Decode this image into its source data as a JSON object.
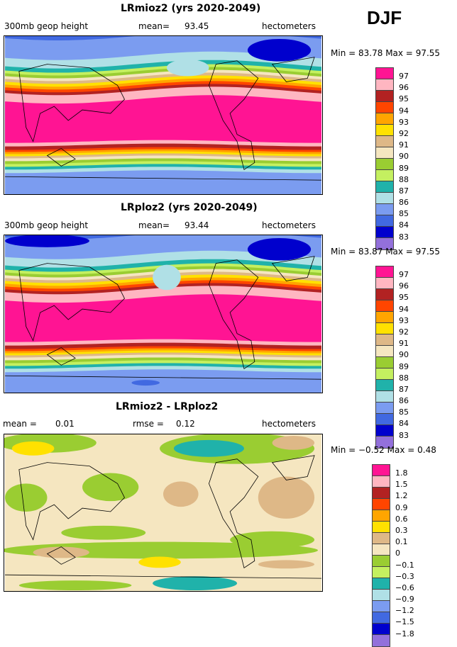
{
  "season": "DJF",
  "legend_colors": [
    "#ff1493",
    "#ffb6c1",
    "#b22222",
    "#ff4500",
    "#ffa500",
    "#ffe100",
    "#deb887",
    "#f5e6c0",
    "#9acd32",
    "#c4f060",
    "#20b2aa",
    "#b0e0e6",
    "#7b9cf0",
    "#4169e1",
    "#0000cd",
    "#9370db"
  ],
  "panels": [
    {
      "title": "LRmioz2 (yrs 2020-2049)",
      "left_label": "300mb geop height",
      "mean_label": "mean=",
      "mean": "93.45",
      "units": "hectometers",
      "min_label": "Min =",
      "min": "83.78",
      "max_label": "Max =",
      "max": "97.55",
      "levels": [
        "97",
        "96",
        "95",
        "94",
        "93",
        "92",
        "91",
        "90",
        "89",
        "88",
        "87",
        "86",
        "85",
        "84",
        "83"
      ]
    },
    {
      "title": "LRploz2 (yrs 2020-2049)",
      "left_label": "300mb geop height",
      "mean_label": "mean=",
      "mean": "93.44",
      "units": "hectometers",
      "min_label": "Min =",
      "min": "83.87",
      "max_label": "Max =",
      "max": "97.55",
      "levels": [
        "97",
        "96",
        "95",
        "94",
        "93",
        "92",
        "91",
        "90",
        "89",
        "88",
        "87",
        "86",
        "85",
        "84",
        "83"
      ]
    },
    {
      "title": "LRmioz2 - LRploz2",
      "left_label": "mean =",
      "mean_label": "",
      "mean": "0.01",
      "rmse_label": "rmse =",
      "rmse": "0.12",
      "units": "hectometers",
      "min_label": "Min =",
      "min": "−0.52",
      "max_label": "Max =",
      "max": "0.48",
      "levels": [
        "1.8",
        "1.5",
        "1.2",
        "0.9",
        "0.6",
        "0.3",
        "0.1",
        "0",
        "−0.1",
        "−0.3",
        "−0.6",
        "−0.9",
        "−1.2",
        "−1.5",
        "−1.8"
      ]
    }
  ]
}
